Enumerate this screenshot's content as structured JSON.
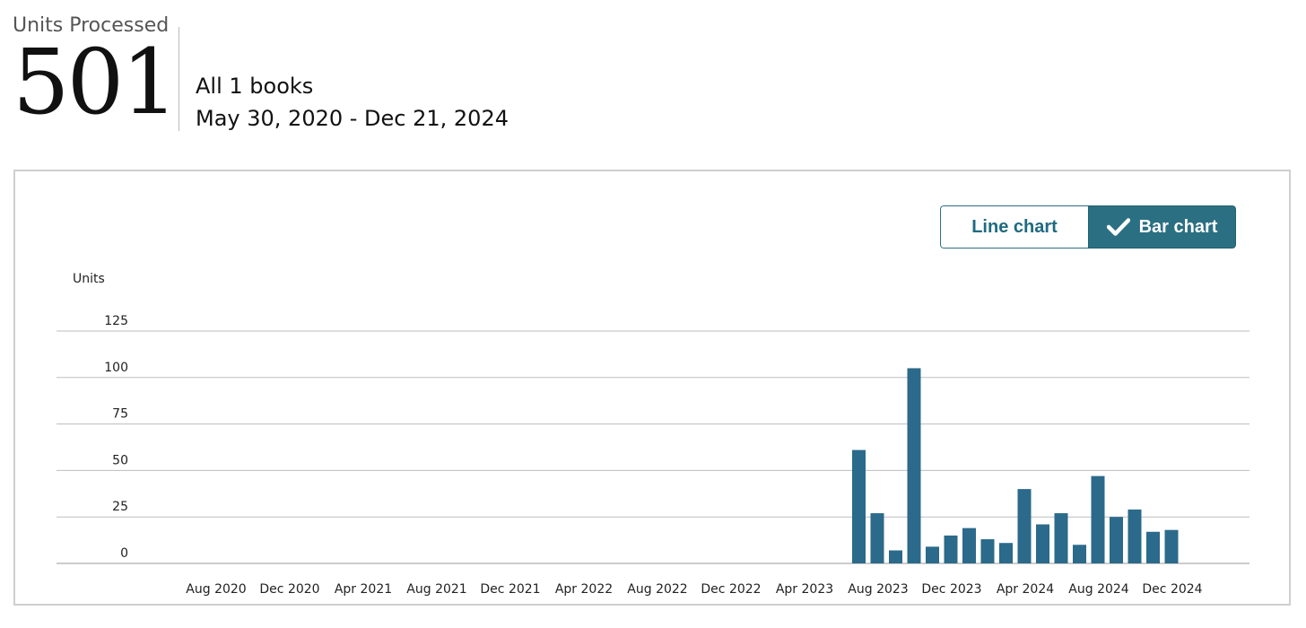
{
  "summary": {
    "label": "Units Processed",
    "value": "501",
    "scope": "All 1 books",
    "date_range": "May 30, 2020 - Dec 21, 2024"
  },
  "toggle": {
    "line_label": "Line chart",
    "bar_label": "Bar chart",
    "selected": "bar",
    "accent_color": "#2b6f82"
  },
  "chart_data": {
    "type": "bar",
    "ylabel": "Units",
    "ylim": [
      0,
      125
    ],
    "yticks": [
      "0",
      "25",
      "50",
      "75",
      "100",
      "125"
    ],
    "grid": true,
    "bar_color": "#2b6a8a",
    "x_tick_labels": [
      "Aug 2020",
      "Dec 2020",
      "Apr 2021",
      "Aug 2021",
      "Dec 2021",
      "Apr 2022",
      "Aug 2022",
      "Dec 2022",
      "Apr 2023",
      "Aug 2023",
      "Dec 2023",
      "Apr 2024",
      "Aug 2024",
      "Dec 2024"
    ],
    "categories": [
      "Jul 2023",
      "Aug 2023",
      "Sep 2023",
      "Oct 2023",
      "Nov 2023",
      "Dec 2023",
      "Jan 2024",
      "Feb 2024",
      "Mar 2024",
      "Apr 2024",
      "May 2024",
      "Jun 2024",
      "Jul 2024",
      "Aug 2024",
      "Sep 2024",
      "Oct 2024",
      "Nov 2024",
      "Dec 2024"
    ],
    "values": [
      61,
      27,
      7,
      105,
      9,
      15,
      19,
      13,
      11,
      40,
      21,
      27,
      10,
      47,
      25,
      29,
      17,
      18
    ]
  }
}
